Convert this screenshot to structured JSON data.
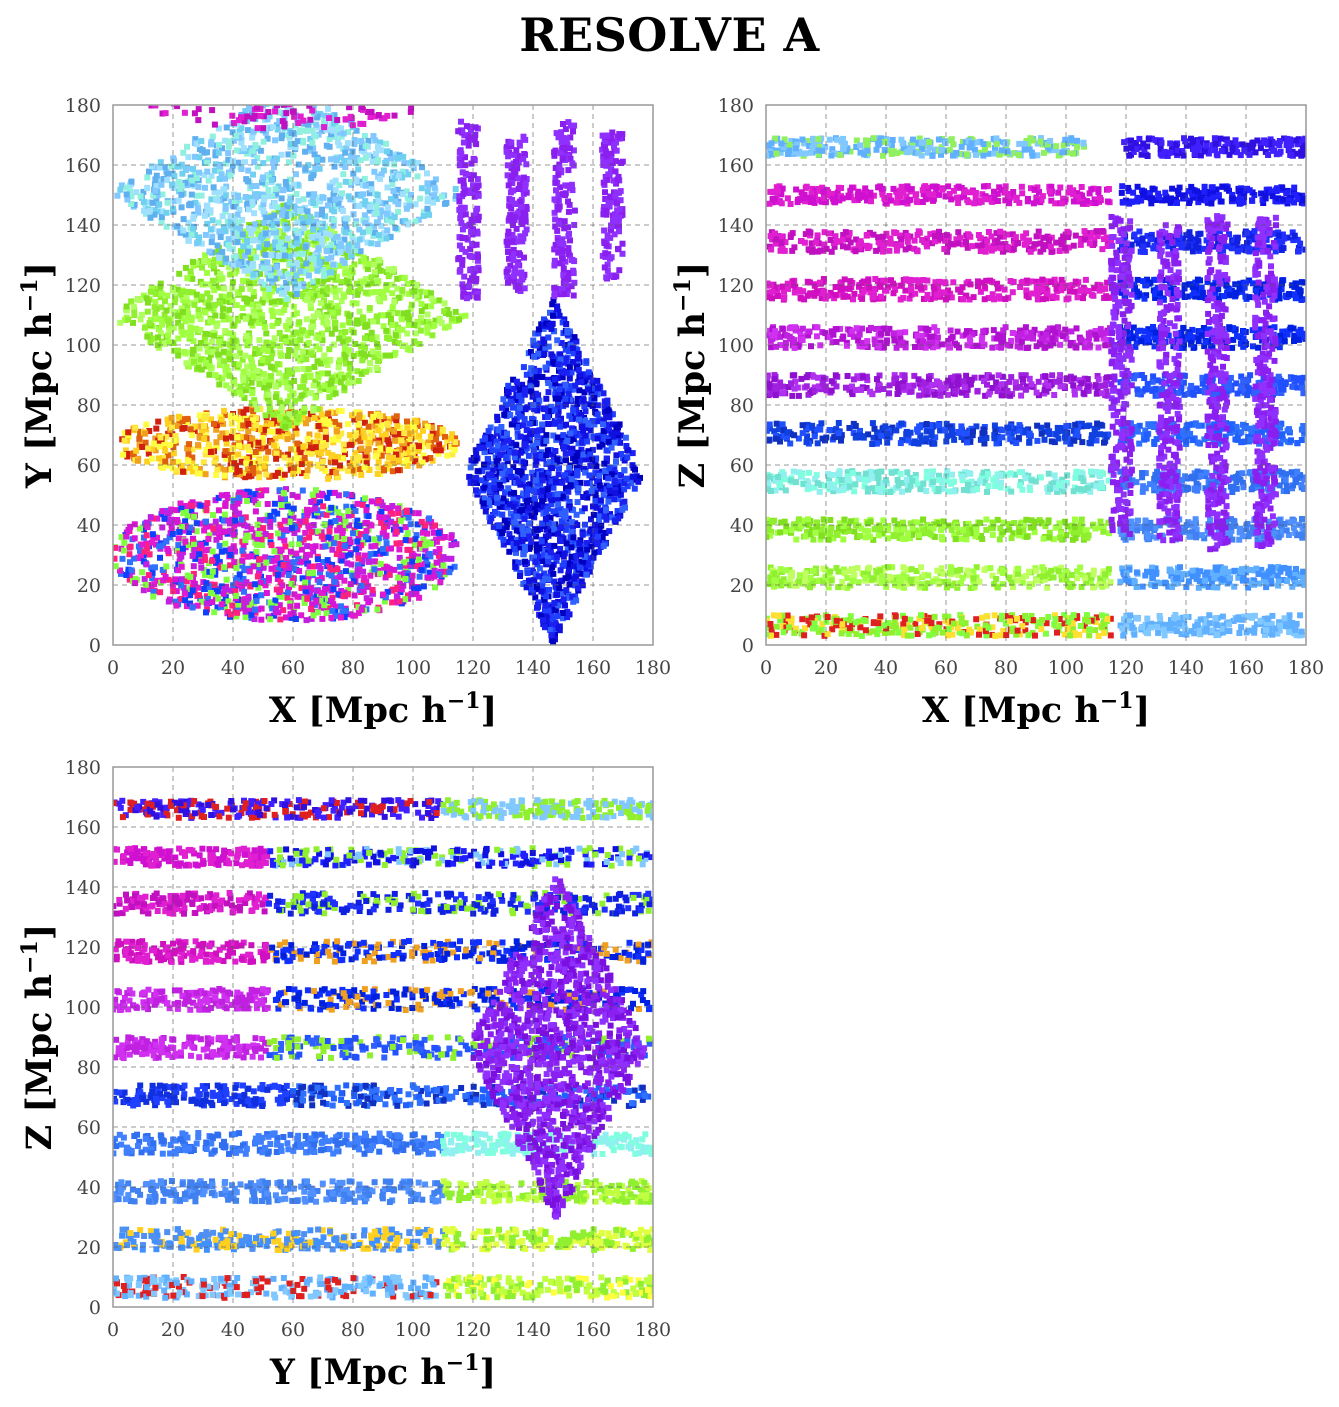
{
  "figure": {
    "title": "RESOLVE A"
  },
  "chart_data": [
    {
      "type": "scatter",
      "panel": "top-left",
      "xlabel": "X [Mpc h",
      "ylabel": "Y [Mpc h",
      "label_superscript": "−1",
      "label_close": "]",
      "xlim": [
        0,
        180
      ],
      "ylim": [
        0,
        180
      ],
      "xticks": [
        "0",
        "20",
        "40",
        "60",
        "80",
        "100",
        "120",
        "140",
        "160",
        "180"
      ],
      "yticks": [
        "0",
        "20",
        "40",
        "60",
        "80",
        "100",
        "120",
        "140",
        "160",
        "180"
      ],
      "grid": true,
      "regions": [
        {
          "shape": "ellipse",
          "cx": 58,
          "cy": 30,
          "rx": 58,
          "ry": 22,
          "colors": [
            "#d615d6",
            "#e01ad0",
            "#ff2080",
            "#1040ff",
            "#3070ff",
            "#c020e0",
            "#80ff40"
          ],
          "count": 1300
        },
        {
          "shape": "ellipse",
          "cx": 58,
          "cy": 67,
          "rx": 58,
          "ry": 12,
          "colors": [
            "#ffd020",
            "#ffe840",
            "#f0a020",
            "#e06010",
            "#ffff40",
            "#d02010"
          ],
          "count": 800
        },
        {
          "shape": "diamond",
          "cx": 58,
          "cy": 110,
          "rx": 60,
          "ry": 38,
          "colors": [
            "#90f030",
            "#a0ff40",
            "#80e020",
            "#b0ff60"
          ],
          "count": 1300
        },
        {
          "shape": "diamond",
          "cx": 58,
          "cy": 151,
          "rx": 60,
          "ry": 36,
          "colors": [
            "#80c8ff",
            "#60b0f0",
            "#a0e0ff",
            "#70d0f0",
            "#90f0e0"
          ],
          "count": 1100
        },
        {
          "shape": "ellipse",
          "cx": 58,
          "cy": 182,
          "rx": 48,
          "ry": 10,
          "colors": [
            "#e020d0",
            "#c010c0"
          ],
          "count": 200
        },
        {
          "shape": "diamond",
          "cx": 147,
          "cy": 58,
          "rx": 30,
          "ry": 58,
          "colors": [
            "#1010e0",
            "#2040ff",
            "#0000c0",
            "#3060ff",
            "#1a20f0"
          ],
          "count": 1500
        },
        {
          "shape": "rect",
          "x0": 115,
          "x1": 122,
          "y0": 115,
          "y1": 175,
          "colors": [
            "#8a20f0",
            "#9030ff"
          ],
          "count": 150
        },
        {
          "shape": "rect",
          "x0": 131,
          "x1": 138,
          "y0": 118,
          "y1": 170,
          "colors": [
            "#8a20f0",
            "#9030ff"
          ],
          "count": 150
        },
        {
          "shape": "rect",
          "x0": 147,
          "x1": 154,
          "y0": 115,
          "y1": 175,
          "colors": [
            "#8a20f0",
            "#9030ff"
          ],
          "count": 150
        },
        {
          "shape": "rect",
          "x0": 163,
          "x1": 170,
          "y0": 122,
          "y1": 172,
          "colors": [
            "#8a20f0",
            "#9030ff"
          ],
          "count": 130
        }
      ]
    },
    {
      "type": "scatter",
      "panel": "top-right",
      "xlabel": "X [Mpc h",
      "ylabel": "Z [Mpc h",
      "label_superscript": "−1",
      "label_close": "]",
      "xlim": [
        0,
        180
      ],
      "ylim": [
        0,
        180
      ],
      "xticks": [
        "0",
        "20",
        "40",
        "60",
        "80",
        "100",
        "120",
        "140",
        "160",
        "180"
      ],
      "yticks": [
        "0",
        "20",
        "40",
        "60",
        "80",
        "100",
        "120",
        "140",
        "160",
        "180"
      ],
      "grid": true,
      "regions": [
        {
          "shape": "rect",
          "x0": 0,
          "x1": 115,
          "y0": 3,
          "y1": 10,
          "colors": [
            "#90f030",
            "#ffe030",
            "#80ff40",
            "#e02020"
          ],
          "count": 300
        },
        {
          "shape": "rect",
          "x0": 0,
          "x1": 115,
          "y0": 19,
          "y1": 26,
          "colors": [
            "#90f030",
            "#a0ff40",
            "#c0ff60"
          ],
          "count": 300
        },
        {
          "shape": "rect",
          "x0": 0,
          "x1": 115,
          "y0": 35,
          "y1": 42,
          "colors": [
            "#90f030",
            "#80e020",
            "#a0ff40"
          ],
          "count": 300
        },
        {
          "shape": "rect",
          "x0": 0,
          "x1": 115,
          "y0": 51,
          "y1": 58,
          "colors": [
            "#80ffe0",
            "#90f0f0",
            "#70e0d0"
          ],
          "count": 300
        },
        {
          "shape": "rect",
          "x0": 0,
          "x1": 115,
          "y0": 67,
          "y1": 74,
          "colors": [
            "#1040e0",
            "#1030c0",
            "#2050ff"
          ],
          "count": 300
        },
        {
          "shape": "rect",
          "x0": 0,
          "x1": 115,
          "y0": 83,
          "y1": 90,
          "colors": [
            "#a020e0",
            "#b030f0",
            "#9010d0"
          ],
          "count": 300
        },
        {
          "shape": "rect",
          "x0": 0,
          "x1": 115,
          "y0": 99,
          "y1": 106,
          "colors": [
            "#c020e0",
            "#d030f0",
            "#b010d0"
          ],
          "count": 300
        },
        {
          "shape": "rect",
          "x0": 0,
          "x1": 115,
          "y0": 115,
          "y1": 122,
          "colors": [
            "#e020d0",
            "#d010c0"
          ],
          "count": 300
        },
        {
          "shape": "rect",
          "x0": 0,
          "x1": 115,
          "y0": 131,
          "y1": 138,
          "colors": [
            "#e020d0",
            "#c010c0"
          ],
          "count": 300
        },
        {
          "shape": "rect",
          "x0": 0,
          "x1": 115,
          "y0": 147,
          "y1": 153,
          "colors": [
            "#e020d0",
            "#d010d0"
          ],
          "count": 280
        },
        {
          "shape": "rect",
          "x0": 0,
          "x1": 107,
          "y0": 163,
          "y1": 169,
          "colors": [
            "#60b0ff",
            "#80c8ff",
            "#90f060"
          ],
          "count": 280
        },
        {
          "shape": "rect",
          "x0": 118,
          "x1": 180,
          "y0": 3,
          "y1": 10,
          "colors": [
            "#60b0ff",
            "#80c8ff"
          ],
          "count": 180
        },
        {
          "shape": "rect",
          "x0": 118,
          "x1": 180,
          "y0": 19,
          "y1": 26,
          "colors": [
            "#4090ff",
            "#60b0ff"
          ],
          "count": 180
        },
        {
          "shape": "rect",
          "x0": 118,
          "x1": 180,
          "y0": 35,
          "y1": 42,
          "colors": [
            "#4080f0",
            "#5090ff"
          ],
          "count": 180
        },
        {
          "shape": "rect",
          "x0": 118,
          "x1": 180,
          "y0": 51,
          "y1": 58,
          "colors": [
            "#3070f0",
            "#4080ff"
          ],
          "count": 180
        },
        {
          "shape": "rect",
          "x0": 118,
          "x1": 180,
          "y0": 67,
          "y1": 74,
          "colors": [
            "#2060ff",
            "#3070ff"
          ],
          "count": 180
        },
        {
          "shape": "rect",
          "x0": 118,
          "x1": 180,
          "y0": 83,
          "y1": 90,
          "colors": [
            "#2050ff",
            "#3060ff"
          ],
          "count": 180
        },
        {
          "shape": "rect",
          "x0": 118,
          "x1": 180,
          "y0": 99,
          "y1": 106,
          "colors": [
            "#0020e0",
            "#1030ff"
          ],
          "count": 180
        },
        {
          "shape": "rect",
          "x0": 118,
          "x1": 180,
          "y0": 115,
          "y1": 122,
          "colors": [
            "#0020e0",
            "#1030ff"
          ],
          "count": 180
        },
        {
          "shape": "rect",
          "x0": 118,
          "x1": 180,
          "y0": 131,
          "y1": 138,
          "colors": [
            "#1020e0",
            "#2030ff"
          ],
          "count": 180
        },
        {
          "shape": "rect",
          "x0": 118,
          "x1": 180,
          "y0": 147,
          "y1": 153,
          "colors": [
            "#1010e0",
            "#2020ff"
          ],
          "count": 180
        },
        {
          "shape": "rect",
          "x0": 119,
          "x1": 180,
          "y0": 163,
          "y1": 169,
          "colors": [
            "#3010e0",
            "#4020ff"
          ],
          "count": 180
        },
        {
          "shape": "rect",
          "x0": 115,
          "x1": 122,
          "y0": 37,
          "y1": 143,
          "colors": [
            "#8a20f0",
            "#9030ff"
          ],
          "count": 260
        },
        {
          "shape": "rect",
          "x0": 131,
          "x1": 138,
          "y0": 33,
          "y1": 140,
          "colors": [
            "#8a20f0",
            "#9030ff"
          ],
          "count": 260
        },
        {
          "shape": "rect",
          "x0": 147,
          "x1": 154,
          "y0": 30,
          "y1": 143,
          "colors": [
            "#8a20f0",
            "#9030ff"
          ],
          "count": 260
        },
        {
          "shape": "rect",
          "x0": 163,
          "x1": 170,
          "y0": 33,
          "y1": 143,
          "colors": [
            "#8a20f0",
            "#9030ff"
          ],
          "count": 260
        }
      ]
    },
    {
      "type": "scatter",
      "panel": "bottom-left",
      "xlabel": "Y [Mpc h",
      "ylabel": "Z [Mpc h",
      "label_superscript": "−1",
      "label_close": "]",
      "xlim": [
        0,
        180
      ],
      "ylim": [
        0,
        180
      ],
      "xticks": [
        "0",
        "20",
        "40",
        "60",
        "80",
        "100",
        "120",
        "140",
        "160",
        "180"
      ],
      "yticks": [
        "0",
        "20",
        "40",
        "60",
        "80",
        "100",
        "120",
        "140",
        "160",
        "180"
      ],
      "grid": true,
      "regions": [
        {
          "shape": "rect",
          "x0": 0,
          "x1": 110,
          "y0": 3,
          "y1": 10,
          "colors": [
            "#60b0ff",
            "#80c8ff",
            "#e02020"
          ],
          "count": 250
        },
        {
          "shape": "rect",
          "x0": 110,
          "x1": 180,
          "y0": 3,
          "y1": 10,
          "colors": [
            "#90f030",
            "#c0ff40",
            "#ffff40"
          ],
          "count": 170
        },
        {
          "shape": "rect",
          "x0": 0,
          "x1": 110,
          "y0": 19,
          "y1": 26,
          "colors": [
            "#4090ff",
            "#5090f0",
            "#ffd020"
          ],
          "count": 250
        },
        {
          "shape": "rect",
          "x0": 110,
          "x1": 180,
          "y0": 19,
          "y1": 26,
          "colors": [
            "#90f030",
            "#e0ff40"
          ],
          "count": 170
        },
        {
          "shape": "rect",
          "x0": 0,
          "x1": 110,
          "y0": 35,
          "y1": 42,
          "colors": [
            "#4080f0",
            "#5090ff"
          ],
          "count": 250
        },
        {
          "shape": "rect",
          "x0": 110,
          "x1": 180,
          "y0": 35,
          "y1": 42,
          "colors": [
            "#90f030",
            "#c0ff40"
          ],
          "count": 170
        },
        {
          "shape": "rect",
          "x0": 0,
          "x1": 110,
          "y0": 51,
          "y1": 58,
          "colors": [
            "#3070f0",
            "#4080ff"
          ],
          "count": 250
        },
        {
          "shape": "rect",
          "x0": 110,
          "x1": 180,
          "y0": 51,
          "y1": 58,
          "colors": [
            "#80ffe0",
            "#90f0f0"
          ],
          "count": 170
        },
        {
          "shape": "rect",
          "x0": 0,
          "x1": 60,
          "y0": 67,
          "y1": 74,
          "colors": [
            "#1030e0",
            "#2040ff"
          ],
          "count": 160
        },
        {
          "shape": "rect",
          "x0": 60,
          "x1": 180,
          "y0": 67,
          "y1": 74,
          "colors": [
            "#2060ff",
            "#3070ff",
            "#1030c0"
          ],
          "count": 240
        },
        {
          "shape": "rect",
          "x0": 0,
          "x1": 52,
          "y0": 83,
          "y1": 90,
          "colors": [
            "#c020e0",
            "#d030f0"
          ],
          "count": 150
        },
        {
          "shape": "rect",
          "x0": 52,
          "x1": 180,
          "y0": 83,
          "y1": 90,
          "colors": [
            "#2050ff",
            "#3060ff",
            "#90f030"
          ],
          "count": 240
        },
        {
          "shape": "rect",
          "x0": 0,
          "x1": 52,
          "y0": 99,
          "y1": 106,
          "colors": [
            "#c020e0",
            "#d030f0"
          ],
          "count": 150
        },
        {
          "shape": "rect",
          "x0": 52,
          "x1": 180,
          "y0": 99,
          "y1": 106,
          "colors": [
            "#0020e0",
            "#1030ff",
            "#f0a020"
          ],
          "count": 240
        },
        {
          "shape": "rect",
          "x0": 0,
          "x1": 52,
          "y0": 115,
          "y1": 122,
          "colors": [
            "#e020d0",
            "#d010c0"
          ],
          "count": 150
        },
        {
          "shape": "rect",
          "x0": 52,
          "x1": 180,
          "y0": 115,
          "y1": 122,
          "colors": [
            "#0020e0",
            "#1030ff",
            "#f0a020"
          ],
          "count": 240
        },
        {
          "shape": "rect",
          "x0": 0,
          "x1": 52,
          "y0": 131,
          "y1": 138,
          "colors": [
            "#e020d0",
            "#c010c0"
          ],
          "count": 150
        },
        {
          "shape": "rect",
          "x0": 52,
          "x1": 180,
          "y0": 131,
          "y1": 138,
          "colors": [
            "#1020e0",
            "#2030ff",
            "#90f030"
          ],
          "count": 240
        },
        {
          "shape": "rect",
          "x0": 0,
          "x1": 52,
          "y0": 147,
          "y1": 153,
          "colors": [
            "#e020d0",
            "#d010d0"
          ],
          "count": 150
        },
        {
          "shape": "rect",
          "x0": 52,
          "x1": 180,
          "y0": 147,
          "y1": 153,
          "colors": [
            "#1010e0",
            "#2020ff",
            "#90f030",
            "#80c8ff"
          ],
          "count": 240
        },
        {
          "shape": "rect",
          "x0": 0,
          "x1": 110,
          "y0": 163,
          "y1": 169,
          "colors": [
            "#3010e0",
            "#4020ff",
            "#e02020"
          ],
          "count": 250
        },
        {
          "shape": "rect",
          "x0": 110,
          "x1": 180,
          "y0": 163,
          "y1": 169,
          "colors": [
            "#90f030",
            "#80c8ff"
          ],
          "count": 170
        },
        {
          "shape": "diamond",
          "cx": 148,
          "cy": 87,
          "rx": 30,
          "ry": 58,
          "colors": [
            "#8a20f0",
            "#9030ff",
            "#7a10e0"
          ],
          "count": 1200
        }
      ]
    }
  ]
}
